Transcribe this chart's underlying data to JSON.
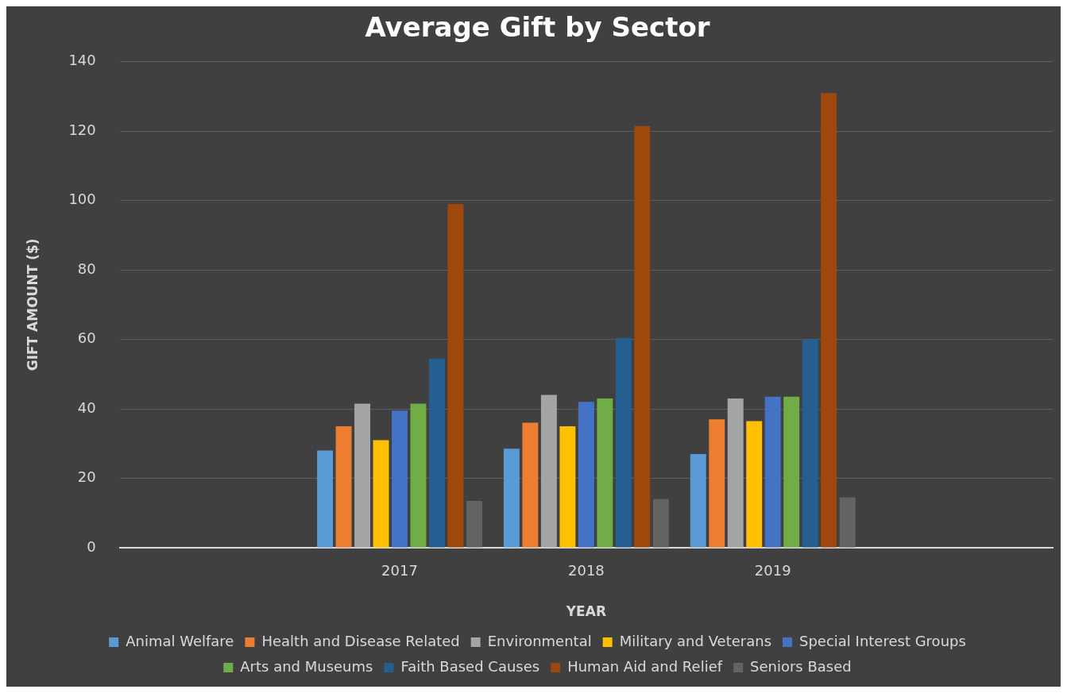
{
  "chart_data": {
    "type": "bar",
    "title": "Average Gift by Sector",
    "xlabel": "YEAR",
    "ylabel": "GIFT AMOUNT ($)",
    "categories": [
      null,
      "2017",
      "2018",
      "2019",
      null
    ],
    "series": [
      {
        "name": "Animal Welfare",
        "color": "#5b9bd5",
        "values": [
          null,
          28,
          28.5,
          27,
          null
        ]
      },
      {
        "name": "Health and Disease Related",
        "color": "#ed7d31",
        "values": [
          null,
          35,
          36,
          37,
          null
        ]
      },
      {
        "name": "Environmental",
        "color": "#a5a5a5",
        "values": [
          null,
          41.5,
          44,
          43,
          null
        ]
      },
      {
        "name": "Military and Veterans",
        "color": "#ffc000",
        "values": [
          null,
          31,
          35,
          36.5,
          null
        ]
      },
      {
        "name": "Special Interest Groups",
        "color": "#4472c4",
        "values": [
          null,
          39.5,
          42,
          43.5,
          null
        ]
      },
      {
        "name": "Arts and Museums",
        "color": "#70ad47",
        "values": [
          null,
          41.5,
          43,
          43.5,
          null
        ]
      },
      {
        "name": "Faith Based Causes",
        "color": "#255e91",
        "values": [
          null,
          54.5,
          60.5,
          60,
          null
        ]
      },
      {
        "name": "Human Aid and Relief",
        "color": "#9e480e",
        "values": [
          null,
          99,
          121.5,
          131,
          null
        ]
      },
      {
        "name": "Seniors Based",
        "color": "#636363",
        "values": [
          null,
          13.5,
          14,
          14.5,
          null
        ]
      }
    ],
    "ylim": [
      0,
      140
    ],
    "yticks": [
      0,
      20,
      40,
      60,
      80,
      100,
      120,
      140
    ],
    "grid": "y",
    "legend": "bottom"
  }
}
